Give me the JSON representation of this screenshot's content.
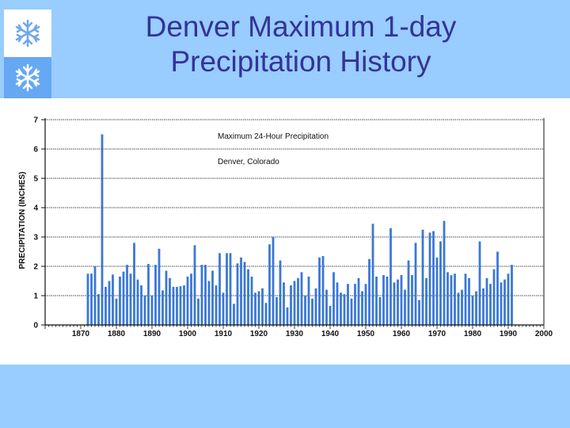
{
  "slide": {
    "title_line1": "Denver Maximum 1-day",
    "title_line2": "Precipitation History",
    "background": "#99ccff",
    "title_color": "#333399"
  },
  "icons": [
    "snowflake-icon",
    "snowflake-icon"
  ],
  "chart_data": {
    "type": "bar",
    "title": "Maximum 24-Hour Precipitation",
    "subtitle": "Denver, Colorado",
    "xlabel": "",
    "ylabel": "PRECIPITATION (INCHES)",
    "xlim": [
      1860,
      2000
    ],
    "ylim": [
      0,
      7
    ],
    "yticks": [
      0,
      1,
      2,
      3,
      4,
      5,
      6,
      7
    ],
    "xticks": [
      1870,
      1880,
      1890,
      1900,
      1910,
      1920,
      1930,
      1940,
      1950,
      1960,
      1970,
      1980,
      1990,
      2000
    ],
    "grid": true,
    "bar_color": "#3a78d6",
    "x": [
      1872,
      1873,
      1874,
      1875,
      1876,
      1877,
      1878,
      1879,
      1880,
      1881,
      1882,
      1883,
      1884,
      1885,
      1886,
      1887,
      1888,
      1889,
      1890,
      1891,
      1892,
      1893,
      1894,
      1895,
      1896,
      1897,
      1898,
      1899,
      1900,
      1901,
      1902,
      1903,
      1904,
      1905,
      1906,
      1907,
      1908,
      1909,
      1910,
      1911,
      1912,
      1913,
      1914,
      1915,
      1916,
      1917,
      1918,
      1919,
      1920,
      1921,
      1922,
      1923,
      1924,
      1925,
      1926,
      1927,
      1928,
      1929,
      1930,
      1931,
      1932,
      1933,
      1934,
      1935,
      1936,
      1937,
      1938,
      1939,
      1940,
      1941,
      1942,
      1943,
      1944,
      1945,
      1946,
      1947,
      1948,
      1949,
      1950,
      1951,
      1952,
      1953,
      1954,
      1955,
      1956,
      1957,
      1958,
      1959,
      1960,
      1961,
      1962,
      1963,
      1964,
      1965,
      1966,
      1967,
      1968,
      1969,
      1970,
      1971,
      1972,
      1973,
      1974,
      1975,
      1976,
      1977,
      1978,
      1979,
      1980,
      1981,
      1982,
      1983,
      1984,
      1985,
      1986,
      1987,
      1988,
      1989,
      1990,
      1991
    ],
    "values": [
      1.75,
      1.75,
      2.0,
      1.05,
      6.5,
      1.3,
      1.5,
      1.72,
      0.9,
      1.65,
      1.82,
      2.05,
      1.75,
      2.8,
      1.55,
      1.35,
      1.0,
      2.08,
      1.0,
      2.05,
      2.6,
      1.18,
      1.85,
      1.6,
      1.3,
      1.3,
      1.32,
      1.35,
      1.65,
      1.75,
      2.72,
      0.9,
      2.05,
      2.05,
      1.5,
      1.85,
      1.35,
      2.45,
      1.1,
      2.45,
      2.45,
      0.72,
      2.1,
      2.3,
      2.15,
      1.9,
      1.65,
      1.1,
      1.15,
      1.25,
      0.75,
      2.75,
      3.0,
      0.95,
      2.2,
      1.45,
      0.6,
      1.35,
      1.5,
      1.6,
      1.8,
      1.0,
      1.65,
      0.9,
      1.25,
      2.3,
      2.35,
      1.2,
      0.65,
      1.8,
      1.45,
      1.1,
      1.05,
      1.4,
      0.9,
      1.4,
      1.6,
      1.15,
      1.4,
      2.25,
      3.45,
      1.65,
      0.95,
      1.7,
      1.65,
      3.3,
      1.45,
      1.55,
      1.7,
      1.2,
      2.2,
      1.7,
      2.8,
      0.85,
      3.25,
      1.6,
      3.15,
      3.2,
      2.3,
      2.85,
      3.55,
      1.8,
      1.7,
      1.75,
      1.1,
      1.2,
      1.75,
      1.6,
      1.0,
      1.15,
      2.85,
      1.25,
      1.6,
      1.4,
      1.9,
      2.5,
      1.45,
      1.55,
      1.75,
      2.05
    ]
  }
}
